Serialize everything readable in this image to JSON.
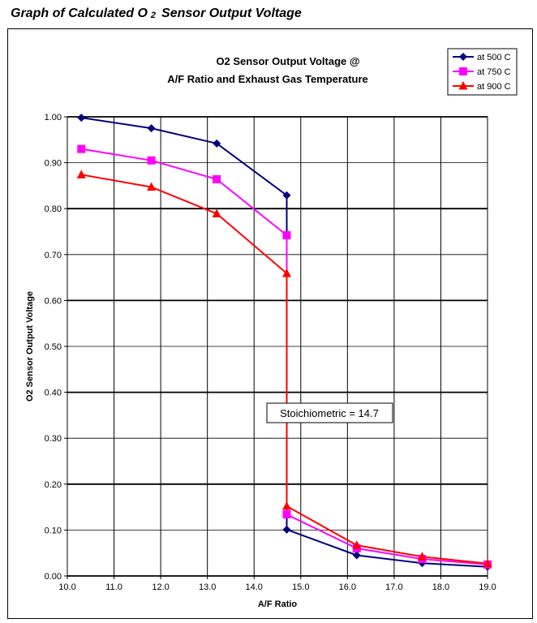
{
  "page": {
    "title_main": "Graph of Calculated O",
    "title_sub": "2",
    "title_rest": "Sensor Output Voltage"
  },
  "chart_data": {
    "type": "line",
    "title_line1": "O2 Sensor Output Voltage @",
    "title_line2": "A/F Ratio and Exhaust Gas Temperature",
    "xlabel": "A/F Ratio",
    "ylabel": "O2 Sensor Output Voltage",
    "xlim": [
      10.0,
      19.0
    ],
    "ylim": [
      0.0,
      1.0
    ],
    "x_ticks": [
      "10.0",
      "11.0",
      "12.0",
      "13.0",
      "14.0",
      "15.0",
      "16.0",
      "17.0",
      "18.0",
      "19.0"
    ],
    "y_ticks": [
      "0.00",
      "0.10",
      "0.20",
      "0.30",
      "0.40",
      "0.50",
      "0.60",
      "0.70",
      "0.80",
      "0.90",
      "1.00"
    ],
    "major_gridlines_y": [
      0.0,
      0.2,
      0.4,
      0.6,
      0.8,
      1.0
    ],
    "grid": true,
    "legend_position": "top-right",
    "annotation": "Stoichiometric = 14.7",
    "series": [
      {
        "name": "at 500 C",
        "color": "#000080",
        "marker": "diamond",
        "x": [
          10.3,
          11.8,
          13.2,
          14.7,
          14.7,
          16.2,
          17.6,
          19.0
        ],
        "y": [
          0.998,
          0.975,
          0.942,
          0.829,
          0.101,
          0.045,
          0.028,
          0.02
        ]
      },
      {
        "name": "at 750 C",
        "color": "#ff00ff",
        "marker": "square",
        "x": [
          10.3,
          11.8,
          13.2,
          14.7,
          14.7,
          16.2,
          17.6,
          19.0
        ],
        "y": [
          0.93,
          0.905,
          0.864,
          0.742,
          0.134,
          0.06,
          0.037,
          0.025
        ]
      },
      {
        "name": "at 900 C",
        "color": "#ff0000",
        "marker": "triangle",
        "x": [
          10.3,
          11.8,
          13.2,
          14.7,
          14.7,
          16.2,
          17.6,
          19.0
        ],
        "y": [
          0.874,
          0.847,
          0.789,
          0.659,
          0.152,
          0.067,
          0.042,
          0.027
        ]
      }
    ]
  }
}
